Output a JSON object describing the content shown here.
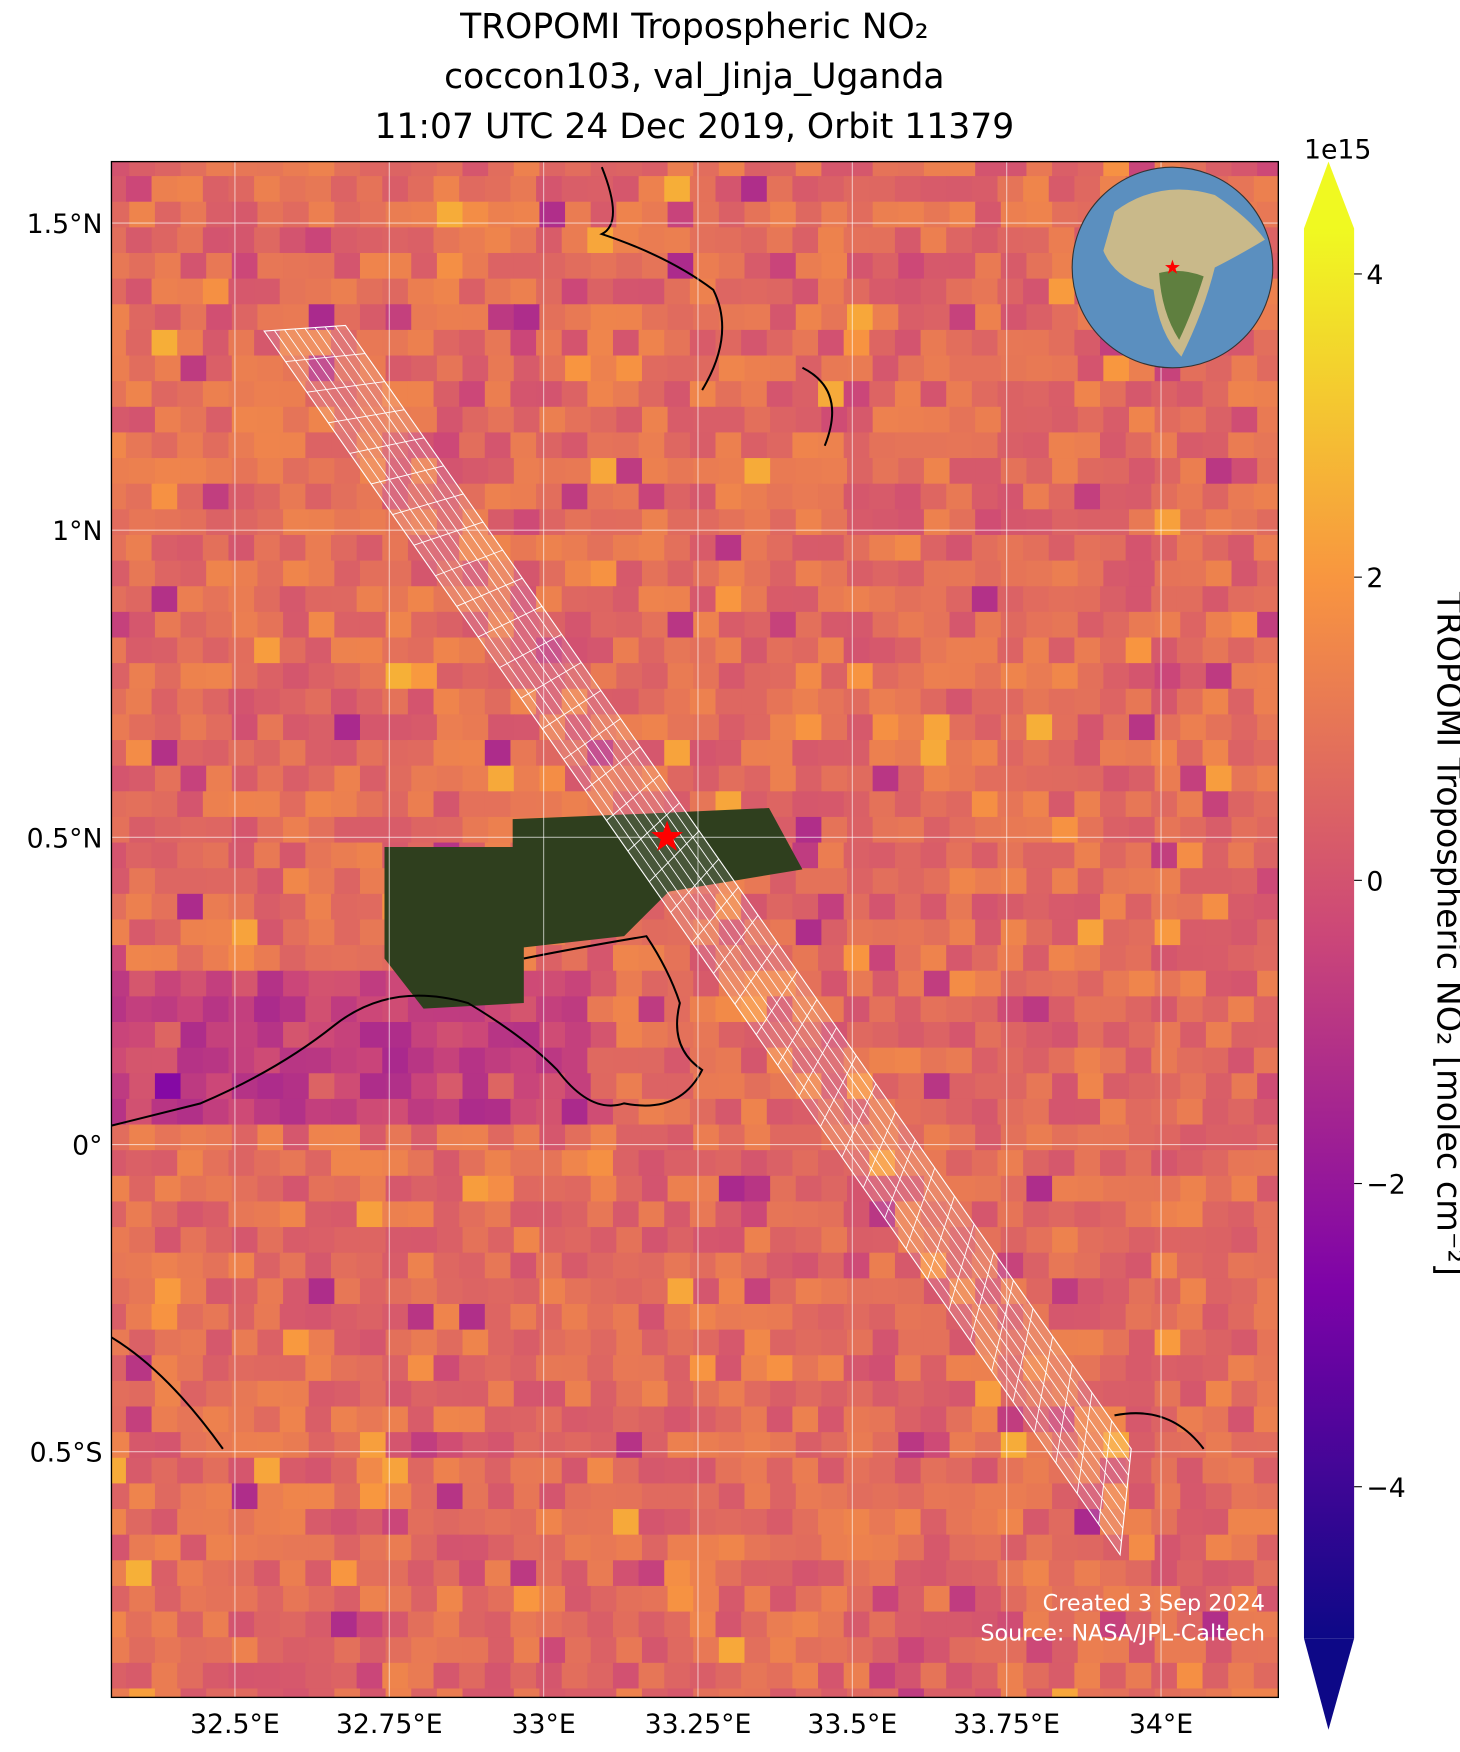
{
  "chart_data": {
    "type": "map",
    "title": [
      "TROPOMI Tropospheric NO₂",
      "coccon103, val_Jinja_Uganda",
      "11:07 UTC 24 Dec 2019, Orbit 11379"
    ],
    "xlim": [
      32.3,
      34.19
    ],
    "ylim": [
      -0.9,
      1.6
    ],
    "xticks": [
      {
        "value": 32.5,
        "label": "32.5°E"
      },
      {
        "value": 32.75,
        "label": "32.75°E"
      },
      {
        "value": 33,
        "label": "33°E"
      },
      {
        "value": 33.25,
        "label": "33.25°E"
      },
      {
        "value": 33.5,
        "label": "33.5°E"
      },
      {
        "value": 33.75,
        "label": "33.75°E"
      },
      {
        "value": 34,
        "label": "34°E"
      }
    ],
    "yticks": [
      {
        "value": -0.5,
        "label": "0.5°S"
      },
      {
        "value": 0,
        "label": "0°"
      },
      {
        "value": 0.5,
        "label": "0.5°N"
      },
      {
        "value": 1,
        "label": "1°N"
      },
      {
        "value": 1.5,
        "label": "1.5°N"
      }
    ],
    "grid": true,
    "site": {
      "lon": 33.2,
      "lat": 0.5,
      "color": "#ff0000"
    },
    "colorbar": {
      "label": "TROPOMI Tropospheric NO₂ [molec cm⁻²]",
      "offset_label": "1e15",
      "clim": [
        -5,
        4.3
      ],
      "ticks": [
        {
          "value": -4,
          "label": "−4"
        },
        {
          "value": -2,
          "label": "−2"
        },
        0,
        2,
        4
      ],
      "colormap": "plasma"
    },
    "annotations": [
      "Created 3 Sep 2024",
      "Source: NASA/JPL-Caltech"
    ]
  }
}
